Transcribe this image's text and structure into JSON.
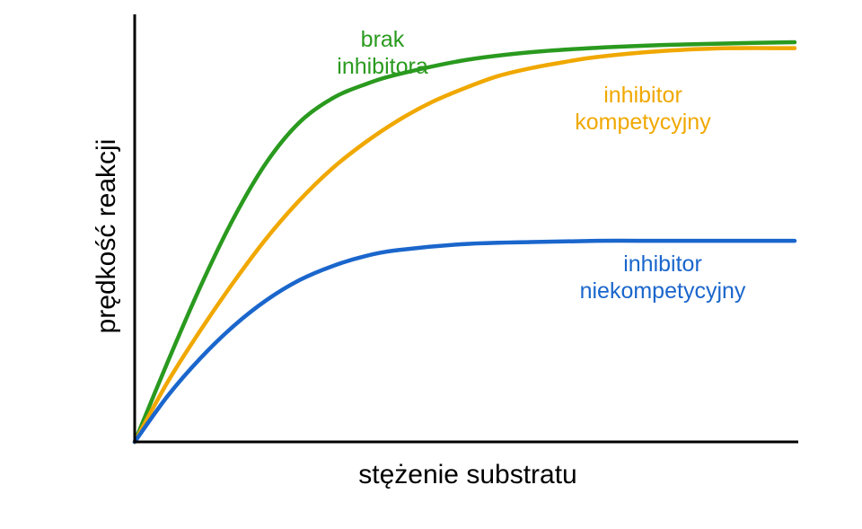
{
  "chart_data": {
    "type": "line",
    "xlabel": "stężenie substratu",
    "ylabel": "prędkość reakcji",
    "xlim": [
      0,
      100
    ],
    "ylim": [
      0,
      100
    ],
    "grid": false,
    "legend": "inline",
    "series": [
      {
        "name": "brak inhibitora",
        "label_lines": [
          "brak",
          "inhibitora"
        ],
        "color": "#2a9a1f",
        "x": [
          0,
          5,
          10,
          15,
          20,
          25,
          30,
          35,
          40,
          50,
          60,
          70,
          80,
          90,
          100
        ],
        "y": [
          0,
          20,
          39,
          56,
          70,
          80,
          86,
          89.5,
          92,
          95.5,
          97.5,
          98.6,
          99.3,
          99.7,
          100
        ]
      },
      {
        "name": "inhibitor kompetycyjny",
        "label_lines": [
          "inhibitor",
          "kompetycyjny"
        ],
        "color": "#f0a800",
        "x": [
          0,
          5,
          10,
          15,
          20,
          25,
          30,
          35,
          40,
          45,
          50,
          55,
          60,
          65,
          70,
          80,
          90,
          100
        ],
        "y": [
          0,
          15,
          28,
          40,
          51,
          60.5,
          68.5,
          75,
          80.5,
          85,
          88.5,
          91.5,
          93.5,
          95,
          96.3,
          97.8,
          98.5,
          98.5
        ]
      },
      {
        "name": "inhibitor niekompetycyjny",
        "label_lines": [
          "inhibitor",
          "niekompetycyjny"
        ],
        "color": "#1a66cc",
        "x": [
          0,
          5,
          10,
          15,
          20,
          25,
          30,
          35,
          40,
          50,
          60,
          70,
          80,
          90,
          100
        ],
        "y": [
          0,
          11.5,
          21,
          29,
          35.5,
          40.5,
          44,
          46.5,
          48,
          49.5,
          50,
          50.3,
          50.3,
          50.3,
          50.3
        ]
      }
    ]
  }
}
